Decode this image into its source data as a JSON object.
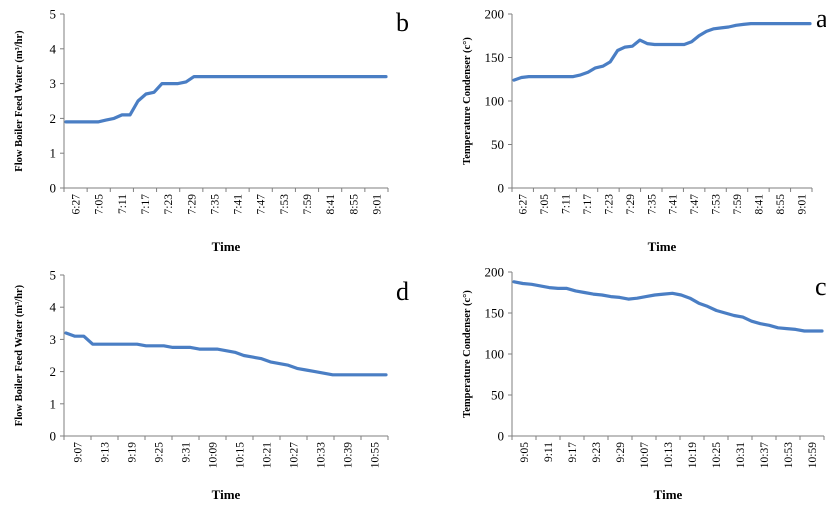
{
  "chart_data": [
    {
      "id": "b",
      "type": "line",
      "panel_label": "b",
      "xlabel": "Time",
      "ylabel": "Flow Boiler Feed Water (m³/hr)",
      "ylim": [
        0,
        5
      ],
      "yticks": [
        0,
        1,
        2,
        3,
        4,
        5
      ],
      "grid": false,
      "color": "#4a7ec4",
      "x_ticks": [
        "6:27",
        "7:05",
        "7:11",
        "7:17",
        "7:23",
        "7:29",
        "7:35",
        "7:41",
        "7:47",
        "7:53",
        "7:59",
        "8:41",
        "8:55",
        "9:01"
      ],
      "series": [
        {
          "values": [
            1.9,
            1.9,
            1.9,
            1.9,
            1.9,
            1.95,
            2.0,
            2.1,
            2.1,
            2.5,
            2.7,
            2.75,
            3.0,
            3.0,
            3.0,
            3.05,
            3.2,
            3.2,
            3.2,
            3.2,
            3.2,
            3.2,
            3.2,
            3.2,
            3.2,
            3.2,
            3.2,
            3.2,
            3.2,
            3.2,
            3.2,
            3.2,
            3.2,
            3.2,
            3.2,
            3.2,
            3.2,
            3.2,
            3.2,
            3.2,
            3.2
          ]
        }
      ]
    },
    {
      "id": "a",
      "type": "line",
      "panel_label": "a",
      "xlabel": "Time",
      "ylabel": "Temperature Condenser (c°)",
      "ylim": [
        0,
        200
      ],
      "yticks": [
        0,
        50,
        100,
        150,
        200
      ],
      "grid": false,
      "color": "#4a7ec4",
      "x_ticks": [
        "6:27",
        "7:05",
        "7:11",
        "7:17",
        "7:23",
        "7:29",
        "7:35",
        "7:41",
        "7:47",
        "7:53",
        "7:59",
        "8:41",
        "8:55",
        "9:01"
      ],
      "series": [
        {
          "values": [
            124,
            127,
            128,
            128,
            128,
            128,
            128,
            128,
            128,
            130,
            133,
            138,
            140,
            145,
            158,
            162,
            163,
            170,
            166,
            165,
            165,
            165,
            165,
            165,
            168,
            175,
            180,
            183,
            184,
            185,
            187,
            188,
            189,
            189,
            189,
            189,
            189,
            189,
            189,
            189,
            189
          ]
        }
      ]
    },
    {
      "id": "d",
      "type": "line",
      "panel_label": "d",
      "xlabel": "Time",
      "ylabel": "Flow Boiler Feed Water (m³/hr)",
      "ylim": [
        0,
        5
      ],
      "yticks": [
        0,
        1,
        2,
        3,
        4,
        5
      ],
      "grid": false,
      "color": "#4a7ec4",
      "x_ticks": [
        "9:07",
        "9:13",
        "9:19",
        "9:25",
        "9:31",
        "10:09",
        "10:15",
        "10:21",
        "10:27",
        "10:33",
        "10:39",
        "10:55"
      ],
      "series": [
        {
          "values": [
            3.2,
            3.1,
            3.1,
            2.85,
            2.85,
            2.85,
            2.85,
            2.85,
            2.85,
            2.8,
            2.8,
            2.8,
            2.75,
            2.75,
            2.75,
            2.7,
            2.7,
            2.7,
            2.65,
            2.6,
            2.5,
            2.45,
            2.4,
            2.3,
            2.25,
            2.2,
            2.1,
            2.05,
            2.0,
            1.95,
            1.9,
            1.9,
            1.9,
            1.9,
            1.9,
            1.9,
            1.9
          ]
        }
      ]
    },
    {
      "id": "c",
      "type": "line",
      "panel_label": "c",
      "xlabel": "Time",
      "ylabel": "Temperature Condenser (c°)",
      "ylim": [
        0,
        200
      ],
      "yticks": [
        0,
        50,
        100,
        150,
        200
      ],
      "grid": false,
      "color": "#4a7ec4",
      "x_ticks": [
        "9:05",
        "9:11",
        "9:17",
        "9:23",
        "9:29",
        "10:07",
        "10:13",
        "10:19",
        "10:25",
        "10:31",
        "10:37",
        "10:53",
        "10:59"
      ],
      "series": [
        {
          "values": [
            188,
            186,
            185,
            183,
            181,
            180,
            180,
            177,
            175,
            173,
            172,
            170,
            169,
            167,
            168,
            170,
            172,
            173,
            174,
            172,
            168,
            162,
            158,
            153,
            150,
            147,
            145,
            140,
            137,
            135,
            132,
            131,
            130,
            128,
            128,
            128
          ]
        }
      ]
    }
  ]
}
